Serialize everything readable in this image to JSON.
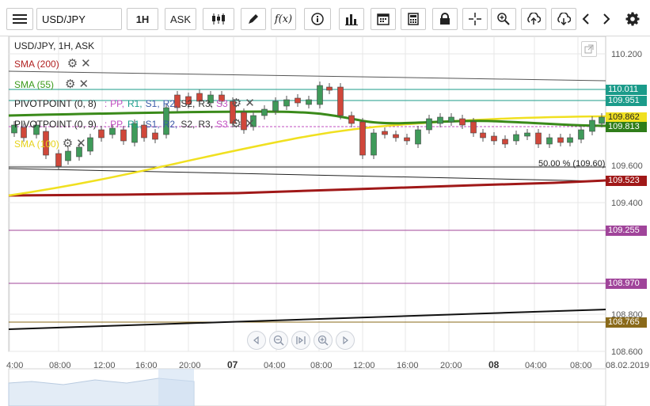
{
  "toolbar": {
    "symbol": "USD/JPY",
    "interval": "1H",
    "price_type": "ASK",
    "icons": [
      "menu-icon",
      "candles-icon",
      "pen-icon",
      "fx-icon",
      "info-icon",
      "bars-icon",
      "calendar-icon",
      "calculator-icon",
      "lock-icon",
      "crosshair-icon",
      "zoom-icon",
      "upload-icon",
      "download-icon",
      "chevron-left-icon",
      "chevron-right-icon",
      "gear-icon"
    ]
  },
  "chart": {
    "title": "USD/JPY, 1H, ASK",
    "indicators": [
      {
        "label": "SMA (200)",
        "color": "#b22222"
      },
      {
        "label": "SMA (55)",
        "color": "#3a9a1a"
      },
      {
        "label": "PIVOTPOINT (0, 8)",
        "color": "#222222"
      },
      {
        "label": "PIVOTPOINT (0, 9)",
        "color": "#222222"
      },
      {
        "label": "SMA (100)",
        "color": "#e6d21a"
      }
    ],
    "pivot_suffix": {
      "sep": ":",
      "pp": "PP,",
      "r1": "R1,",
      "s1": "S1,",
      "r2": "R2,",
      "s2": "S2,",
      "r3": "R3,",
      "s3": "S3"
    },
    "y_axis_labels": [
      "110.200",
      "109.600",
      "109.400",
      "108.800",
      "108.600"
    ],
    "price_tags": [
      {
        "value": "110.011",
        "color": "#1b9b8a"
      },
      {
        "value": "109.951",
        "color": "#1b9b8a"
      },
      {
        "value": "109.862",
        "color": "#e6d21a"
      },
      {
        "value": "109.813",
        "color": "#2f7d1a"
      },
      {
        "value": "109.523",
        "color": "#a01818"
      },
      {
        "value": "109.255",
        "color": "#a0449a"
      },
      {
        "value": "108.970",
        "color": "#a0449a"
      },
      {
        "value": "108.765",
        "color": "#8a6a1a"
      }
    ],
    "fib_label": "50.00 % (109.60)",
    "x_axis_labels": [
      "4:00",
      "08:00",
      "12:00",
      "16:00",
      "20:00",
      "07",
      "04:00",
      "08:00",
      "12:00",
      "16:00",
      "20:00",
      "08",
      "04:00",
      "08:00",
      "08.02.2019"
    ],
    "colors": {
      "up": "#3f9a5a",
      "down": "#d0473a",
      "sma200": "#a01818",
      "sma55": "#3a8a1a",
      "sma100": "#f0e020"
    }
  },
  "zoom_controls": [
    "prev-icon",
    "zoom-out-icon",
    "reset-icon",
    "zoom-in-icon",
    "next-icon"
  ]
}
